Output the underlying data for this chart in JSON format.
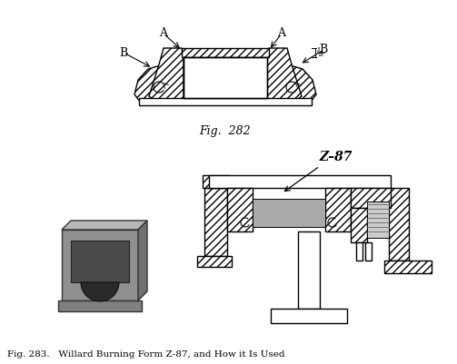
{
  "fig_width": 5.03,
  "fig_height": 4.01,
  "dpi": 100,
  "bg_color": "#ffffff",
  "fig282_caption": "Fig.  282",
  "fig283_caption": "Fig. 283.   Willard Burning Form Z-87, and How it Is Used",
  "z87_label": "Z–87",
  "line_color": "#000000",
  "hatch_pattern": "////",
  "gray_fill": "#999999",
  "dark_gray": "#555555",
  "med_gray": "#888888"
}
